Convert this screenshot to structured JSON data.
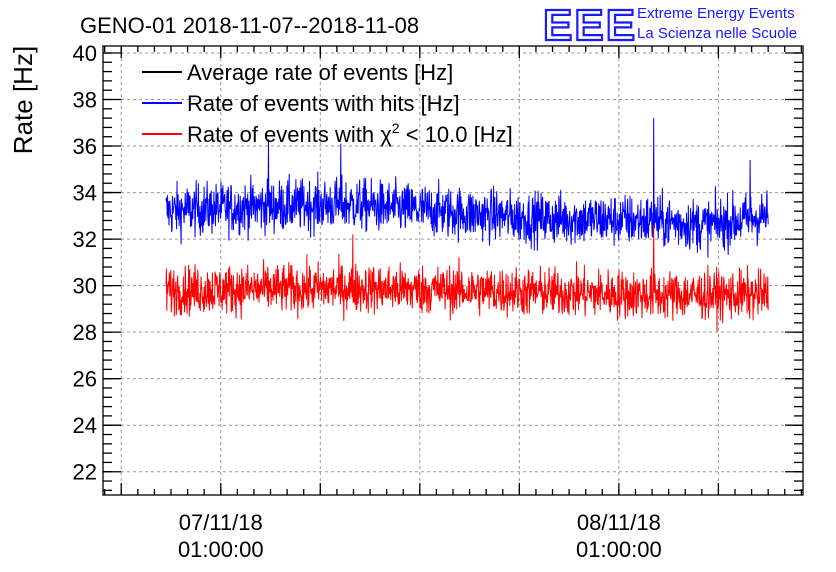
{
  "chart_data": {
    "type": "line",
    "title": "GENO-01 2018-11-07--2018-11-08",
    "ylabel": "Rate [Hz]",
    "xlabel": "",
    "ylim": [
      21,
      40.3
    ],
    "yticks": [
      22,
      24,
      26,
      28,
      30,
      32,
      34,
      36,
      38,
      40
    ],
    "x_ticks": [
      {
        "line1": "07/11/18",
        "line2": "01:00:00",
        "value": "2018-11-07 01:00:00"
      },
      {
        "line1": "08/11/18",
        "line2": "01:00:00",
        "value": "2018-11-08 01:00:00"
      }
    ],
    "xlim": [
      "2018-11-06 17:54:00",
      "2018-11-08 12:06:00"
    ],
    "x_data_range": [
      "2018-11-06 21:42:00",
      "2018-11-08 10:00:00"
    ],
    "grid": true,
    "legend_position": "top-left",
    "legend": [
      {
        "label": "Average rate of events [Hz]",
        "color": "#000000"
      },
      {
        "label": "Rate of events with hits [Hz]",
        "color": "#0000ff"
      },
      {
        "label": "Rate of events with χ² < 10.0 [Hz]",
        "color": "#ff0000",
        "label_prefix": "Rate of events with ",
        "chi": "χ",
        "sup": "2",
        "label_suffix": " < 10.0 [Hz]"
      }
    ],
    "series": [
      {
        "name": "Rate of events with hits [Hz]",
        "color": "#0000ff",
        "mean": 33.1,
        "spread": 0.8,
        "min": 31.2,
        "max": 37.2,
        "profile": [
          [
            0,
            33.2
          ],
          [
            0.15,
            33.4
          ],
          [
            0.3,
            33.5
          ],
          [
            0.45,
            33.2
          ],
          [
            0.6,
            32.9
          ],
          [
            0.8,
            32.8
          ],
          [
            0.9,
            32.6
          ],
          [
            1,
            33.0
          ]
        ],
        "spikes": [
          [
            0.17,
            36.3
          ],
          [
            0.29,
            36.1
          ],
          [
            0.81,
            37.2
          ],
          [
            0.97,
            35.4
          ]
        ]
      },
      {
        "name": "Rate of events with χ² < 10.0 [Hz]",
        "color": "#ff0000",
        "mean": 29.7,
        "spread": 0.75,
        "min": 27.4,
        "max": 32.8,
        "profile": [
          [
            0,
            29.8
          ],
          [
            0.3,
            29.9
          ],
          [
            0.5,
            29.8
          ],
          [
            0.8,
            29.6
          ],
          [
            1,
            29.6
          ]
        ],
        "spikes": [
          [
            0.31,
            32.2
          ],
          [
            0.81,
            32.6
          ]
        ]
      }
    ]
  },
  "logo": {
    "letters": "EEE",
    "line1": "Extreme Energy Events",
    "line2": "La Scienza nelle Scuole"
  }
}
